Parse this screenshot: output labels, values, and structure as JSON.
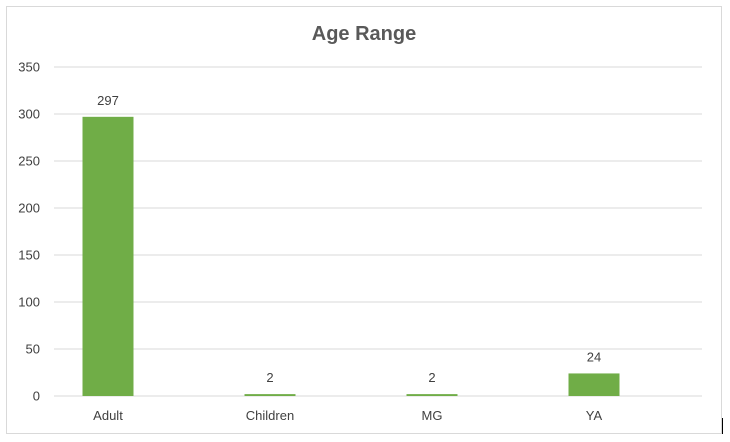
{
  "chart_data": {
    "type": "bar",
    "title": "Age Range",
    "xlabel": "",
    "ylabel": "",
    "categories": [
      "Adult",
      "Children",
      "MG",
      "YA"
    ],
    "values": [
      297,
      2,
      2,
      24
    ],
    "data_labels": [
      "297",
      "2",
      "2",
      "24"
    ],
    "ylim": [
      0,
      350
    ],
    "yticks": [
      0,
      50,
      100,
      150,
      200,
      250,
      300,
      350
    ],
    "grid": true,
    "legend": "none",
    "bar_color": "#70ad47"
  }
}
